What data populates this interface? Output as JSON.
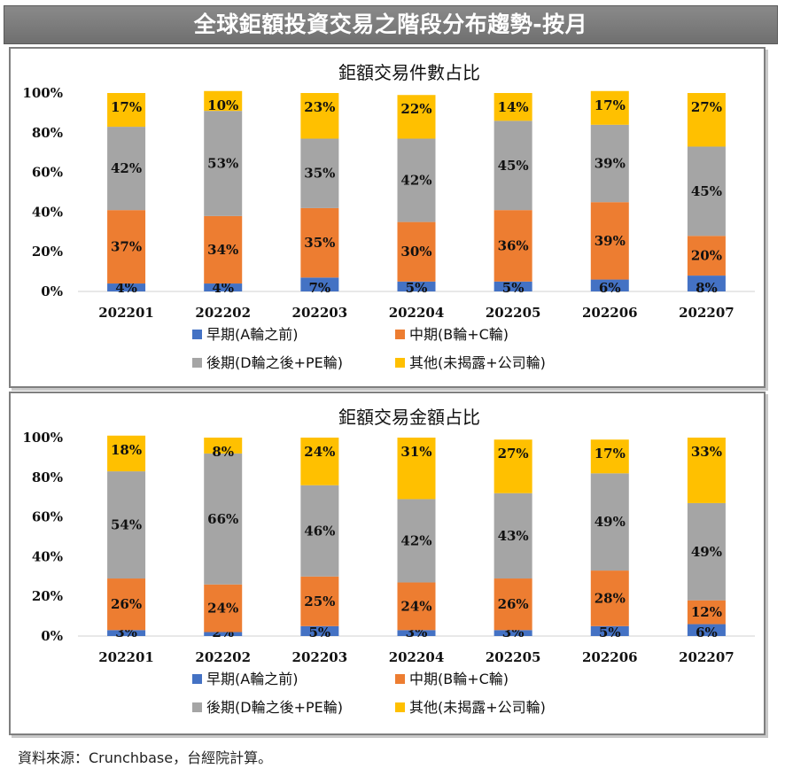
{
  "page_title": "全球鉅額投資交易之階段分布趨勢-按月",
  "source_note": "資料來源：Crunchbase，台經院計算。",
  "colors": {
    "early": "#4472C4",
    "mid": "#ED7D31",
    "late": "#A5A5A5",
    "other": "#FFC000"
  },
  "chart_data": [
    {
      "type": "bar",
      "stacked": true,
      "title": "鉅額交易件數占比",
      "categories": [
        "202201",
        "202202",
        "202203",
        "202204",
        "202205",
        "202206",
        "202207"
      ],
      "y_ticks": [
        "0%",
        "20%",
        "40%",
        "60%",
        "80%",
        "100%"
      ],
      "ylim": [
        0,
        100
      ],
      "legend_position": "bottom",
      "series": [
        {
          "name": "早期(A輪之前)",
          "color_key": "early",
          "values": [
            4,
            4,
            7,
            5,
            5,
            6,
            8
          ],
          "labels": [
            "4%",
            "4%",
            "7%",
            "5%",
            "5%",
            "6%",
            "8%"
          ]
        },
        {
          "name": "中期(B輪+C輪)",
          "color_key": "mid",
          "values": [
            37,
            34,
            35,
            30,
            36,
            39,
            20
          ],
          "labels": [
            "37%",
            "34%",
            "35%",
            "30%",
            "36%",
            "39%",
            "20%"
          ]
        },
        {
          "name": "後期(D輪之後+PE輪)",
          "color_key": "late",
          "values": [
            42,
            53,
            35,
            42,
            45,
            39,
            45
          ],
          "labels": [
            "42%",
            "53%",
            "35%",
            "42%",
            "45%",
            "39%",
            "45%"
          ]
        },
        {
          "name": "其他(未揭露+公司輪)",
          "color_key": "other",
          "values": [
            17,
            10,
            23,
            22,
            14,
            17,
            27
          ],
          "labels": [
            "17%",
            "10%",
            "23%",
            "22%",
            "14%",
            "17%",
            "27%"
          ]
        }
      ]
    },
    {
      "type": "bar",
      "stacked": true,
      "title": "鉅額交易金額占比",
      "categories": [
        "202201",
        "202202",
        "202203",
        "202204",
        "202205",
        "202206",
        "202207"
      ],
      "y_ticks": [
        "0%",
        "20%",
        "40%",
        "60%",
        "80%",
        "100%"
      ],
      "ylim": [
        0,
        100
      ],
      "legend_position": "bottom",
      "series": [
        {
          "name": "早期(A輪之前)",
          "color_key": "early",
          "values": [
            3,
            2,
            5,
            3,
            3,
            5,
            6
          ],
          "labels": [
            "3%",
            "2%",
            "5%",
            "3%",
            "3%",
            "5%",
            "6%"
          ]
        },
        {
          "name": "中期(B輪+C輪)",
          "color_key": "mid",
          "values": [
            26,
            24,
            25,
            24,
            26,
            28,
            12
          ],
          "labels": [
            "26%",
            "24%",
            "25%",
            "24%",
            "26%",
            "28%",
            "12%"
          ]
        },
        {
          "name": "後期(D輪之後+PE輪)",
          "color_key": "late",
          "values": [
            54,
            66,
            46,
            42,
            43,
            49,
            49
          ],
          "labels": [
            "54%",
            "66%",
            "46%",
            "42%",
            "43%",
            "49%",
            "49%"
          ]
        },
        {
          "name": "其他(未揭露+公司輪)",
          "color_key": "other",
          "values": [
            18,
            8,
            24,
            31,
            27,
            17,
            33
          ],
          "labels": [
            "18%",
            "8%",
            "24%",
            "31%",
            "27%",
            "17%",
            "33%"
          ]
        }
      ]
    }
  ]
}
